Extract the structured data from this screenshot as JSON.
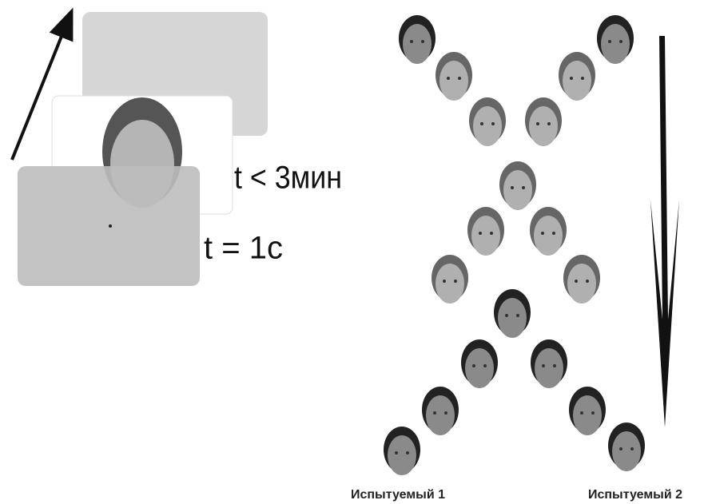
{
  "stimulus": {
    "time_long": "t < 3мин",
    "time_short": "t = 1с"
  },
  "subjects": {
    "left": "Испытуемый 1",
    "right": "Испытуемый 2"
  }
}
